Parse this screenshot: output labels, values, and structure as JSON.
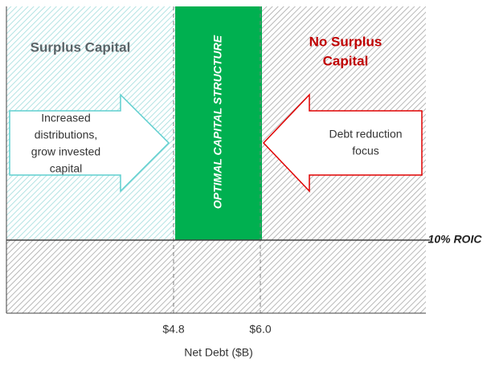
{
  "regions": {
    "left": "Surplus Capital",
    "right": [
      "No Surplus",
      "Capital"
    ],
    "band": "OPTIMAL CAPITAL STRUCTURE"
  },
  "arrows": {
    "left": [
      "Increased",
      "distributions,",
      "grow invested",
      "capital"
    ],
    "right": [
      "Debt reduction",
      "focus"
    ]
  },
  "threshold": "10% ROIC",
  "axis": {
    "ticks": [
      "$4.8",
      "$6.0"
    ],
    "label": "Net Debt ($B)"
  }
}
